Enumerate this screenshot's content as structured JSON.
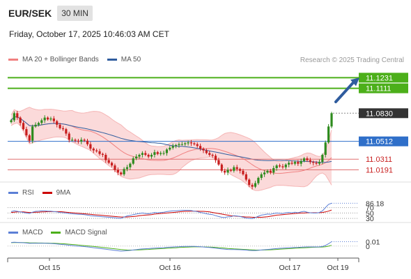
{
  "header": {
    "symbol": "EUR/SEK",
    "timeframe": "30 MIN"
  },
  "timestamp": "Friday, October 17, 2025 10:46:03 AM CET",
  "copyright": "Research © 2025 Trading Central",
  "legends": {
    "main": [
      {
        "name": "MA 20 + Bollinger Bands",
        "color": "#f08080"
      },
      {
        "name": "MA 50",
        "color": "#2f5c9e"
      }
    ],
    "rsi": [
      {
        "name": "RSI",
        "color": "#5b7fd6"
      },
      {
        "name": "9MA",
        "color": "#cc0000"
      }
    ],
    "macd": [
      {
        "name": "MACD",
        "color": "#5b7fd6"
      },
      {
        "name": "MACD Signal",
        "color": "#4caf1a"
      }
    ]
  },
  "colors": {
    "up": "#2e8b1e",
    "down": "#c81e1e",
    "resistance": "#4caf1a",
    "pivot": "#2f6fc9",
    "support": "#e07070",
    "bands": "#fbdada"
  },
  "chart_data": [
    {
      "type": "candlestick",
      "ylim": [
        11.01,
        11.136
      ],
      "x_ticks": [
        "Oct 15",
        "Oct 16",
        "Oct 17",
        "Oct 19"
      ],
      "levels": [
        {
          "value": 11.1231,
          "label": "11.1231",
          "kind": "resistance"
        },
        {
          "value": 11.1111,
          "label": "11.1111",
          "kind": "resistance"
        },
        {
          "value": 11.0512,
          "label": "11.0512",
          "kind": "pivot"
        },
        {
          "value": 11.0311,
          "label": "11.0311",
          "kind": "support"
        },
        {
          "value": 11.0191,
          "label": "11.0191",
          "kind": "support"
        }
      ],
      "last_price": {
        "value": 11.083,
        "label": "11.0830"
      },
      "closes": [
        11.075,
        11.083,
        11.078,
        11.072,
        11.065,
        11.058,
        11.052,
        11.068,
        11.07,
        11.072,
        11.075,
        11.078,
        11.076,
        11.077,
        11.074,
        11.07,
        11.066,
        11.065,
        11.06,
        11.053,
        11.053,
        11.052,
        11.051,
        11.053,
        11.052,
        11.048,
        11.043,
        11.041,
        11.04,
        11.037,
        11.036,
        11.03,
        11.027,
        11.024,
        11.019,
        11.016,
        11.014,
        11.02,
        11.022,
        11.026,
        11.032,
        11.034,
        11.036,
        11.038,
        11.036,
        11.034,
        11.036,
        11.039,
        11.037,
        11.038,
        11.038,
        11.042,
        11.044,
        11.046,
        11.047,
        11.048,
        11.048,
        11.049,
        11.05,
        11.049,
        11.048,
        11.046,
        11.043,
        11.041,
        11.038,
        11.036,
        11.035,
        11.03,
        11.025,
        11.018,
        11.016,
        11.019,
        11.018,
        11.022,
        11.02,
        11.018,
        11.014,
        11.008,
        11.002,
        11.0,
        11.004,
        11.01,
        11.014,
        11.016,
        11.018,
        11.016,
        11.021,
        11.024,
        11.023,
        11.022,
        11.025,
        11.027,
        11.026,
        11.028,
        11.026,
        11.029,
        11.032,
        11.03,
        11.028,
        11.027,
        11.026,
        11.028,
        11.036,
        11.05,
        11.068,
        11.083
      ]
    },
    {
      "type": "line",
      "name": "RSI",
      "ylim": [
        25,
        95
      ],
      "right_labels": [
        "86.18",
        "70",
        "50",
        "30"
      ],
      "last_value": 86.18,
      "rsi": [
        55,
        58,
        56,
        54,
        52,
        50,
        48,
        53,
        56,
        57,
        58,
        58,
        57,
        57,
        55,
        54,
        52,
        51,
        50,
        48,
        47,
        46,
        45,
        45,
        44,
        42,
        40,
        39,
        38,
        37,
        36,
        35,
        34,
        33,
        32,
        31,
        30,
        35,
        39,
        41,
        44,
        46,
        48,
        50,
        48,
        47,
        49,
        52,
        51,
        52,
        53,
        55,
        57,
        58,
        58,
        59,
        60,
        60,
        60,
        59,
        57,
        55,
        52,
        50,
        47,
        45,
        44,
        40,
        37,
        34,
        33,
        36,
        36,
        40,
        39,
        37,
        34,
        31,
        30,
        29,
        33,
        38,
        42,
        44,
        46,
        45,
        48,
        50,
        49,
        48,
        51,
        52,
        51,
        53,
        51,
        54,
        56,
        53,
        51,
        50,
        50,
        52,
        58,
        70,
        82,
        86.18
      ],
      "ma9": [
        52,
        53,
        54,
        54,
        54,
        53,
        52,
        52,
        53,
        53,
        54,
        54,
        55,
        55,
        55,
        55,
        55,
        54,
        53,
        52,
        51,
        50,
        49,
        48,
        47,
        46,
        45,
        44,
        43,
        42,
        41,
        40,
        39,
        38,
        37,
        36,
        35,
        35,
        35,
        36,
        37,
        38,
        40,
        41,
        42,
        43,
        44,
        46,
        47,
        48,
        49,
        50,
        51,
        52,
        53,
        54,
        55,
        56,
        56,
        57,
        57,
        57,
        56,
        56,
        55,
        54,
        52,
        50,
        48,
        46,
        44,
        42,
        40,
        39,
        38,
        37,
        36,
        35,
        35,
        34,
        34,
        34,
        34,
        35,
        36,
        38,
        40,
        42,
        43,
        44,
        45,
        46,
        47,
        48,
        49,
        50,
        50,
        51,
        51,
        51,
        51,
        51,
        52,
        54,
        57,
        61
      ]
    },
    {
      "type": "line",
      "name": "MACD",
      "ylim": [
        -0.014,
        0.009
      ],
      "right_labels": [
        "0.01",
        "0"
      ],
      "last_value": 0.01,
      "macd": [
        0.0048,
        0.005,
        0.0049,
        0.0047,
        0.0044,
        0.004,
        0.0036,
        0.0037,
        0.0038,
        0.0038,
        0.0038,
        0.0038,
        0.0036,
        0.0034,
        0.0031,
        0.0028,
        0.0024,
        0.002,
        0.0016,
        0.0011,
        0.0007,
        0.0003,
        -0.0001,
        -0.0004,
        -0.0007,
        -0.0011,
        -0.0016,
        -0.0021,
        -0.0026,
        -0.0031,
        -0.0036,
        -0.0042,
        -0.0047,
        -0.0052,
        -0.0057,
        -0.0062,
        -0.0066,
        -0.0064,
        -0.0061,
        -0.0057,
        -0.0052,
        -0.0047,
        -0.0042,
        -0.0038,
        -0.0035,
        -0.0033,
        -0.003,
        -0.0027,
        -0.0025,
        -0.0023,
        -0.0021,
        -0.0018,
        -0.0015,
        -0.0012,
        -0.001,
        -0.0008,
        -0.0006,
        -0.0005,
        -0.0004,
        -0.0004,
        -0.0005,
        -0.0007,
        -0.0009,
        -0.0012,
        -0.0016,
        -0.0019,
        -0.0022,
        -0.0027,
        -0.0032,
        -0.0038,
        -0.0042,
        -0.0044,
        -0.0046,
        -0.0046,
        -0.0047,
        -0.0048,
        -0.005,
        -0.0053,
        -0.0057,
        -0.006,
        -0.0059,
        -0.0056,
        -0.0052,
        -0.0048,
        -0.0044,
        -0.0041,
        -0.0037,
        -0.0033,
        -0.003,
        -0.0028,
        -0.0025,
        -0.0022,
        -0.002,
        -0.0018,
        -0.0017,
        -0.0015,
        -0.0012,
        -0.0011,
        -0.0011,
        -0.0011,
        -0.0011,
        -0.001,
        -0.0005,
        0.0008,
        0.003,
        0.0058
      ],
      "signal": [
        0.0045,
        0.0046,
        0.0047,
        0.0047,
        0.0046,
        0.0045,
        0.0043,
        0.0042,
        0.0041,
        0.004,
        0.004,
        0.0039,
        0.0039,
        0.0038,
        0.0037,
        0.0035,
        0.0033,
        0.0031,
        0.0028,
        0.0025,
        0.0021,
        0.0018,
        0.0014,
        0.001,
        0.0006,
        0.0003,
        -0.0001,
        -0.0005,
        -0.0009,
        -0.0013,
        -0.0018,
        -0.0022,
        -0.0027,
        -0.0032,
        -0.0036,
        -0.0041,
        -0.0046,
        -0.0049,
        -0.0052,
        -0.0053,
        -0.0053,
        -0.0052,
        -0.005,
        -0.0048,
        -0.0046,
        -0.0044,
        -0.0041,
        -0.0039,
        -0.0036,
        -0.0034,
        -0.0032,
        -0.0029,
        -0.0027,
        -0.0024,
        -0.0022,
        -0.0019,
        -0.0017,
        -0.0015,
        -0.0013,
        -0.0011,
        -0.001,
        -0.001,
        -0.001,
        -0.0011,
        -0.0012,
        -0.0013,
        -0.0015,
        -0.0018,
        -0.0021,
        -0.0024,
        -0.0028,
        -0.0031,
        -0.0034,
        -0.0037,
        -0.0039,
        -0.0041,
        -0.0043,
        -0.0045,
        -0.0048,
        -0.005,
        -0.0052,
        -0.0053,
        -0.0053,
        -0.0052,
        -0.0051,
        -0.0049,
        -0.0047,
        -0.0044,
        -0.0042,
        -0.0039,
        -0.0036,
        -0.0034,
        -0.0031,
        -0.0029,
        -0.0026,
        -0.0024,
        -0.0022,
        -0.002,
        -0.0018,
        -0.0016,
        -0.0015,
        -0.0014,
        -0.0012,
        -0.0008,
        -0.0001,
        0.001
      ]
    }
  ]
}
